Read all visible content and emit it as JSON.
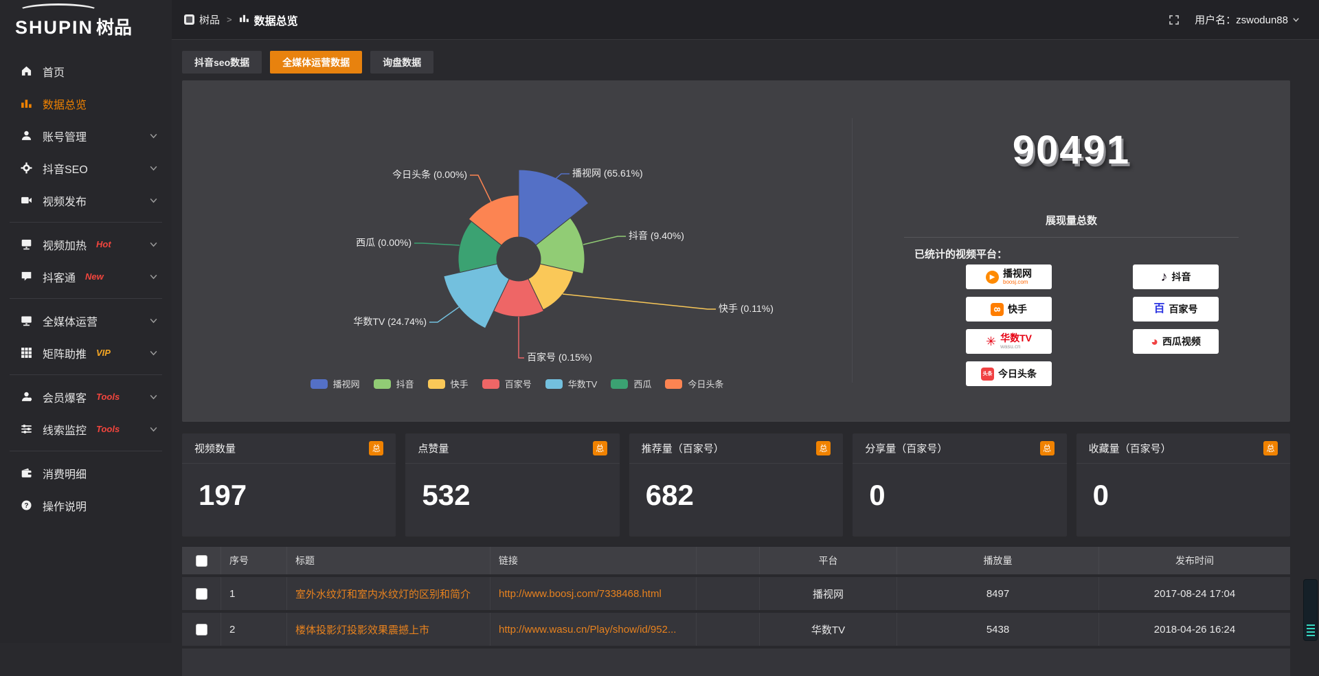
{
  "topbar": {
    "breadcrumb_app": "树品",
    "breadcrumb_sep": ">",
    "breadcrumb_page": "数据总览",
    "username": "用户名：zswodun88"
  },
  "sidebar": {
    "logo_en": "SHUPIN",
    "logo_cn": "树品",
    "items": [
      {
        "id": "home",
        "label": "首页",
        "icon": "home-icon"
      },
      {
        "id": "data-overview",
        "label": "数据总览",
        "icon": "bar-chart-icon",
        "active": true
      },
      {
        "id": "account-manage",
        "label": "账号管理",
        "icon": "user-icon",
        "chevron": true
      },
      {
        "id": "douyin-seo",
        "label": "抖音SEO",
        "icon": "gear-icon",
        "chevron": true
      },
      {
        "id": "video-publish",
        "label": "视频发布",
        "icon": "video-icon",
        "chevron": true
      },
      {
        "divider": true
      },
      {
        "id": "video-heat",
        "label": "视频加热",
        "icon": "screen-icon",
        "badge": "Hot",
        "badge_color": "#f2453d",
        "chevron": true
      },
      {
        "id": "douketong",
        "label": "抖客通",
        "icon": "chat-icon",
        "badge": "New",
        "badge_color": "#f2453d",
        "chevron": true
      },
      {
        "divider": true
      },
      {
        "id": "media-operation",
        "label": "全媒体运营",
        "icon": "monitor-icon",
        "chevron": true
      },
      {
        "id": "matrix-boost",
        "label": "矩阵助推",
        "icon": "grid-icon",
        "badge": "VIP",
        "badge_color": "#f5a623",
        "chevron": true
      },
      {
        "divider": true
      },
      {
        "id": "member-baoke",
        "label": "会员爆客",
        "icon": "member-icon",
        "badge": "Tools",
        "badge_color": "#f2453d",
        "chevron": true
      },
      {
        "id": "clue-monitor",
        "label": "线索监控",
        "icon": "sliders-icon",
        "badge": "Tools",
        "badge_color": "#f2453d",
        "chevron": true
      },
      {
        "divider": true
      },
      {
        "id": "consume-detail",
        "label": "消费明细",
        "icon": "wallet-icon"
      },
      {
        "id": "help",
        "label": "操作说明",
        "icon": "question-icon"
      }
    ]
  },
  "tabs": [
    {
      "label": "抖音seo数据",
      "active": false
    },
    {
      "label": "全媒体运营数据",
      "active": true
    },
    {
      "label": "询盘数据",
      "active": false
    }
  ],
  "chart_data": {
    "type": "pie",
    "subtype": "nightingale-rose",
    "categories": [
      "播视网",
      "抖音",
      "快手",
      "百家号",
      "华数TV",
      "西瓜",
      "今日头条"
    ],
    "values_percent": [
      65.61,
      9.4,
      0.11,
      0.15,
      24.74,
      0.0,
      0.0
    ],
    "labels": [
      "播视网 (65.61%)",
      "抖音 (9.40%)",
      "快手 (0.11%)",
      "百家号 (0.15%)",
      "华数TV (24.74%)",
      "西瓜 (0.00%)",
      "今日头条 (0.00%)"
    ],
    "colors": [
      "#5470c6",
      "#91cc75",
      "#fac858",
      "#ee6666",
      "#73c0de",
      "#3ba272",
      "#fc8452"
    ],
    "legend": [
      "播视网",
      "抖音",
      "快手",
      "百家号",
      "华数TV",
      "西瓜",
      "今日头条"
    ],
    "legend_position": "bottom",
    "donut_hole": true
  },
  "summary": {
    "total": "90491",
    "total_label": "展现量总数",
    "platforms_title": "已统计的视频平台：",
    "platform_columns": [
      [
        {
          "name": "播视网",
          "sub": "boosj.com",
          "sub_color": "#f60",
          "icon": "boosj-icon"
        },
        {
          "name": "快手",
          "icon": "kuaishou-icon"
        },
        {
          "name": "华数TV",
          "sub": "wasu.cn",
          "sub_color": "#999",
          "icon": "wasu-icon",
          "name_color": "#e60012"
        },
        {
          "name": "今日头条",
          "icon": "toutiao-icon"
        }
      ],
      [
        {
          "name": "抖音",
          "icon": "douyin-icon"
        },
        {
          "name": "百家号",
          "icon": "baijiahao-icon"
        },
        {
          "name": "西瓜视频",
          "icon": "xigua-icon"
        }
      ]
    ]
  },
  "stat_cards": [
    {
      "label": "视频数量",
      "badge": "总",
      "value": "197"
    },
    {
      "label": "点赞量",
      "badge": "总",
      "value": "532"
    },
    {
      "label": "推荐量（百家号）",
      "badge": "总",
      "value": "682"
    },
    {
      "label": "分享量（百家号）",
      "badge": "总",
      "value": "0"
    },
    {
      "label": "收藏量（百家号）",
      "badge": "总",
      "value": "0"
    }
  ],
  "table": {
    "headers": [
      "序号",
      "标题",
      "链接",
      "平台",
      "播放量",
      "发布时间"
    ],
    "rows": [
      {
        "no": "1",
        "title": "室外水纹灯和室内水纹灯的区别和简介",
        "link": "http://www.boosj.com/7338468.html",
        "platform": "播视网",
        "plays": "8497",
        "time": "2017-08-24 17:04"
      },
      {
        "no": "2",
        "title": "楼体投影灯投影效果震撼上市",
        "link": "http://www.wasu.cn/Play/show/id/952...",
        "platform": "华数TV",
        "plays": "5438",
        "time": "2018-04-26 16:24"
      }
    ]
  },
  "colors": {
    "accent": "#f08200",
    "tab_active": "#e8820e",
    "link": "#e8821e"
  }
}
